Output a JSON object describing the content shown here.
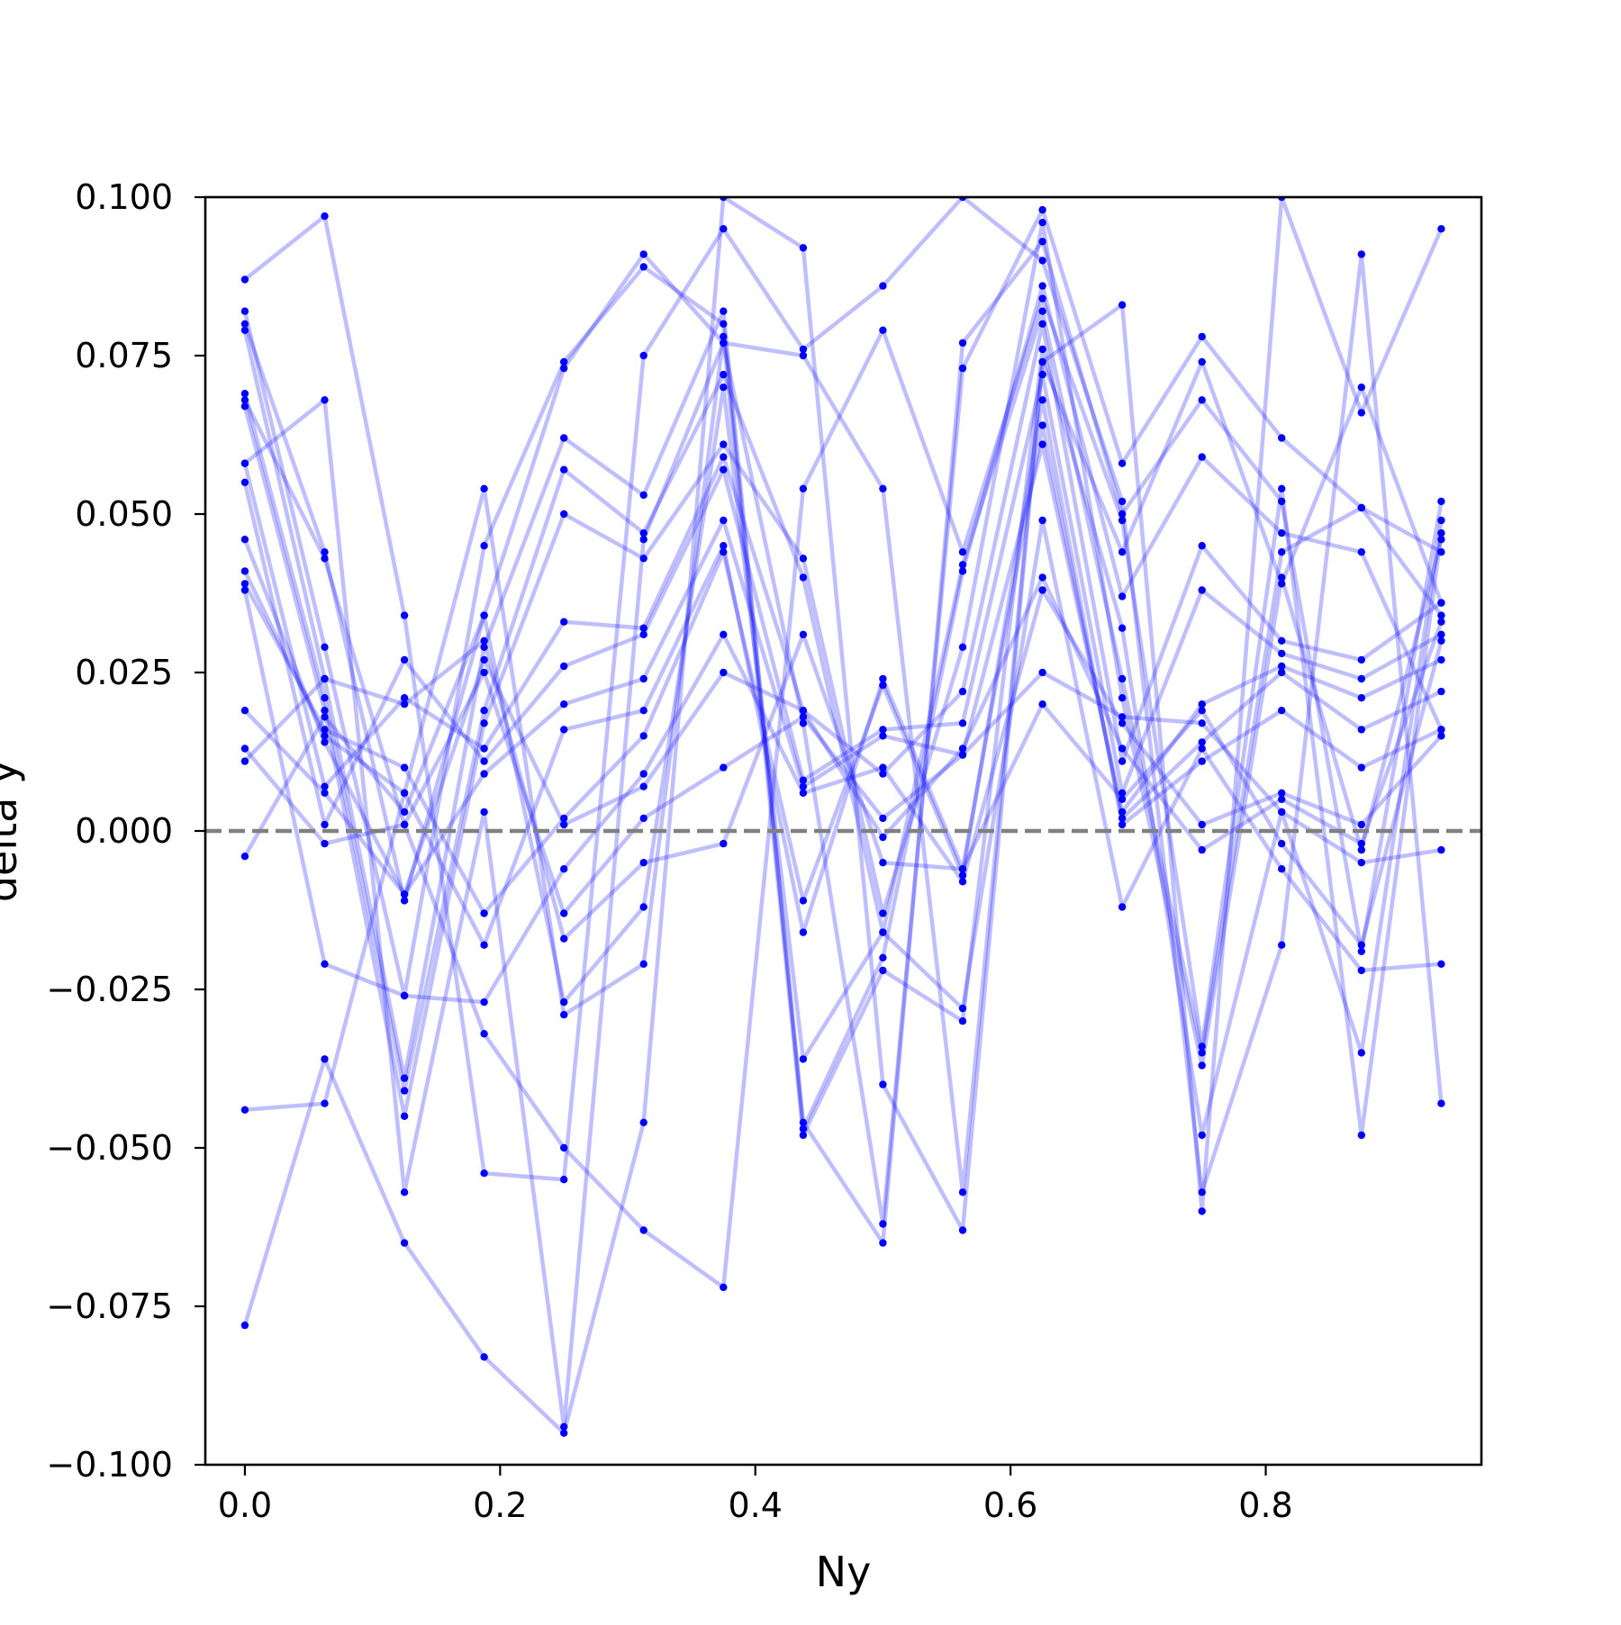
{
  "chart_data": {
    "type": "line",
    "title": "",
    "xlabel": "Ny",
    "ylabel": "delta y",
    "xlim": [
      -0.031,
      0.969
    ],
    "ylim": [
      -0.1,
      0.1
    ],
    "xticks": [
      0.0,
      0.2,
      0.4,
      0.6,
      0.8
    ],
    "xtick_labels": [
      "0.0",
      "0.2",
      "0.4",
      "0.6",
      "0.8"
    ],
    "yticks": [
      -0.1,
      -0.075,
      -0.05,
      -0.025,
      0.0,
      0.025,
      0.05,
      0.075,
      0.1
    ],
    "ytick_labels": [
      "−0.100",
      "−0.075",
      "−0.050",
      "−0.025",
      "0.000",
      "0.025",
      "0.050",
      "0.075",
      "0.100"
    ],
    "grid": false,
    "legend": "none",
    "reference_line": {
      "y": 0.0,
      "style": "dashed",
      "color": "#808080"
    },
    "series_color": "#0000ff",
    "line_alpha": 0.25,
    "x": [
      0.0,
      0.0625,
      0.125,
      0.1875,
      0.25,
      0.3125,
      0.375,
      0.4375,
      0.5,
      0.5625,
      0.625,
      0.6875,
      0.75,
      0.8125,
      0.875,
      0.9375
    ],
    "series": [
      {
        "values": [
          0.08,
          0.044,
          -0.011,
          0.034,
          0.073,
          0.091,
          0.077,
          0.017,
          -0.062,
          0.073,
          0.098,
          0.058,
          0.078,
          0.062,
          0.051,
          0.034
        ]
      },
      {
        "values": [
          0.082,
          0.029,
          -0.026,
          0.045,
          0.074,
          0.089,
          0.08,
          -0.046,
          -0.065,
          0.077,
          0.093,
          0.05,
          0.068,
          0.052,
          -0.019,
          0.052
        ]
      },
      {
        "values": [
          0.079,
          0.024,
          -0.039,
          0.029,
          0.062,
          0.053,
          0.082,
          -0.047,
          -0.02,
          0.041,
          0.086,
          0.037,
          0.059,
          0.047,
          0.044,
          0.016
        ]
      },
      {
        "values": [
          0.069,
          0.021,
          -0.041,
          0.019,
          0.057,
          0.047,
          0.072,
          0.04,
          -0.016,
          0.042,
          0.082,
          0.024,
          -0.035,
          0.044,
          0.051,
          0.044
        ]
      },
      {
        "values": [
          0.067,
          0.019,
          -0.045,
          0.017,
          0.05,
          0.043,
          0.061,
          0.043,
          -0.013,
          0.029,
          0.096,
          0.021,
          -0.037,
          0.04,
          -0.003,
          0.046
        ]
      },
      {
        "values": [
          0.058,
          0.007,
          0.021,
          0.013,
          0.033,
          0.032,
          0.059,
          0.019,
          0.009,
          0.022,
          0.08,
          0.011,
          0.045,
          0.03,
          0.027,
          0.036
        ]
      },
      {
        "values": [
          0.055,
          0.001,
          0.027,
          0.011,
          0.026,
          0.031,
          0.057,
          0.008,
          0.016,
          0.017,
          0.072,
          0.006,
          0.038,
          0.028,
          0.024,
          0.031
        ]
      },
      {
        "values": [
          0.046,
          0.014,
          -0.01,
          0.009,
          0.02,
          0.024,
          0.049,
          0.007,
          0.015,
          0.012,
          0.061,
          0.003,
          0.02,
          0.026,
          0.021,
          0.027
        ]
      },
      {
        "values": [
          0.041,
          0.015,
          0.006,
          -0.018,
          0.016,
          0.019,
          0.045,
          -0.016,
          0.024,
          -0.006,
          0.064,
          0.002,
          0.014,
          0.025,
          0.016,
          0.022
        ]
      },
      {
        "values": [
          0.039,
          0.016,
          0.01,
          -0.013,
          0.002,
          0.015,
          0.044,
          -0.011,
          0.023,
          -0.007,
          0.068,
          0.001,
          0.011,
          0.019,
          0.01,
          0.016
        ]
      },
      {
        "values": [
          0.038,
          -0.021,
          -0.026,
          -0.027,
          -0.006,
          0.009,
          0.031,
          0.006,
          0.01,
          -0.008,
          0.038,
          0.017,
          0.001,
          0.006,
          0.001,
          0.015
        ]
      },
      {
        "values": [
          0.019,
          0.006,
          -0.01,
          0.027,
          0.001,
          0.007,
          0.025,
          0.019,
          -0.001,
          0.013,
          0.04,
          0.013,
          -0.003,
          0.005,
          -0.002,
          0.033
        ]
      },
      {
        "values": [
          0.013,
          -0.002,
          0.001,
          0.025,
          -0.013,
          0.002,
          0.01,
          0.018,
          0.002,
          0.012,
          0.025,
          0.018,
          0.017,
          0.003,
          -0.005,
          -0.003
        ]
      },
      {
        "values": [
          0.011,
          0.024,
          0.02,
          0.03,
          -0.017,
          -0.005,
          -0.002,
          0.031,
          -0.005,
          -0.006,
          0.02,
          0.005,
          0.019,
          -0.002,
          -0.018,
          0.03
        ]
      },
      {
        "values": [
          -0.004,
          0.018,
          0.003,
          0.034,
          -0.027,
          -0.012,
          0.07,
          -0.036,
          -0.016,
          -0.028,
          0.049,
          -0.012,
          0.013,
          -0.006,
          -0.022,
          -0.021
        ]
      },
      {
        "values": [
          -0.044,
          -0.043,
          0.006,
          0.054,
          -0.029,
          -0.021,
          0.078,
          -0.048,
          -0.022,
          -0.03,
          0.076,
          0.032,
          -0.048,
          0.003,
          -0.035,
          0.049
        ]
      },
      {
        "values": [
          -0.078,
          -0.036,
          -0.065,
          -0.083,
          -0.095,
          -0.046,
          0.1,
          0.092,
          -0.04,
          -0.063,
          0.074,
          0.083,
          -0.06,
          0.1,
          0.066,
          0.095
        ]
      },
      {
        "values": [
          0.087,
          0.097,
          0.034,
          -0.054,
          -0.055,
          0.075,
          0.095,
          0.076,
          0.086,
          0.1,
          0.09,
          0.052,
          -0.057,
          -0.018,
          0.091,
          -0.043
        ]
      },
      {
        "values": [
          0.068,
          0.043,
          0.001,
          -0.032,
          -0.05,
          -0.063,
          -0.072,
          0.054,
          0.079,
          0.044,
          0.084,
          0.049,
          -0.034,
          0.054,
          -0.048,
          0.047
        ]
      },
      {
        "values": [
          0.058,
          0.068,
          -0.057,
          0.003,
          -0.094,
          0.046,
          0.077,
          0.075,
          0.054,
          -0.057,
          0.074,
          0.044,
          0.074,
          0.039,
          0.07,
          0.036
        ]
      }
    ]
  }
}
